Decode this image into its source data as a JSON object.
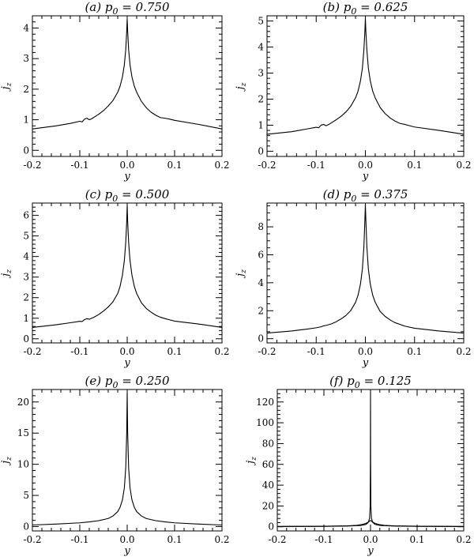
{
  "chart_data": [
    {
      "type": "line",
      "title": "(a) p0 = 0.750",
      "title_prefix": "(a) p",
      "title_sub": "0",
      "title_suffix": " = 0.750",
      "xlabel": "y",
      "ylabel": "j",
      "ylabel_sub": "z",
      "xlim": [
        -0.2,
        0.2
      ],
      "ylim": [
        -0.2,
        4.4
      ],
      "xticks": [
        -0.2,
        -0.1,
        0.0,
        0.1,
        0.2
      ],
      "xtick_labels": [
        "-0.2",
        "-0.1",
        "0.0",
        "0.1",
        "0.2"
      ],
      "yticks": [
        0,
        1,
        2,
        3,
        4
      ],
      "ytick_labels": [
        "0",
        "1",
        "2",
        "3",
        "4"
      ],
      "series": [
        {
          "x": [
            -0.2,
            -0.15,
            -0.12,
            -0.1,
            -0.095,
            -0.09,
            -0.085,
            -0.08,
            -0.075,
            -0.07,
            -0.06,
            -0.05,
            -0.04,
            -0.03,
            -0.02,
            -0.015,
            -0.01,
            -0.006,
            -0.003,
            -0.001,
            0.0,
            0.001,
            0.003,
            0.006,
            0.01,
            0.015,
            0.02,
            0.03,
            0.04,
            0.05,
            0.06,
            0.07,
            0.08,
            0.09,
            0.1,
            0.15,
            0.2
          ],
          "y": [
            0.7,
            0.8,
            0.88,
            0.95,
            0.93,
            1.02,
            1.05,
            1.0,
            1.03,
            1.08,
            1.18,
            1.3,
            1.45,
            1.63,
            1.9,
            2.1,
            2.4,
            2.8,
            3.3,
            3.9,
            4.3,
            3.9,
            3.3,
            2.8,
            2.4,
            2.1,
            1.9,
            1.6,
            1.4,
            1.25,
            1.15,
            1.07,
            1.05,
            1.02,
            0.98,
            0.85,
            0.7
          ]
        }
      ]
    },
    {
      "type": "line",
      "title": "(b) p0 = 0.625",
      "title_prefix": "(b) p",
      "title_sub": "0",
      "title_suffix": " = 0.625",
      "xlabel": "y",
      "ylabel": "j",
      "ylabel_sub": "z",
      "xlim": [
        -0.2,
        0.2
      ],
      "ylim": [
        -0.2,
        5.2
      ],
      "xticks": [
        -0.2,
        -0.1,
        0.0,
        0.1,
        0.2
      ],
      "xtick_labels": [
        "-0.2",
        "-0.1",
        "0.0",
        "0.1",
        "0.2"
      ],
      "yticks": [
        0,
        1,
        2,
        3,
        4,
        5
      ],
      "ytick_labels": [
        "0",
        "1",
        "2",
        "3",
        "4",
        "5"
      ],
      "series": [
        {
          "x": [
            -0.2,
            -0.15,
            -0.12,
            -0.1,
            -0.095,
            -0.09,
            -0.085,
            -0.08,
            -0.075,
            -0.07,
            -0.06,
            -0.05,
            -0.04,
            -0.03,
            -0.02,
            -0.015,
            -0.01,
            -0.006,
            -0.003,
            -0.001,
            0.0,
            0.001,
            0.003,
            0.006,
            0.01,
            0.015,
            0.02,
            0.03,
            0.04,
            0.05,
            0.06,
            0.07,
            0.08,
            0.09,
            0.1,
            0.15,
            0.2
          ],
          "y": [
            0.65,
            0.75,
            0.85,
            0.92,
            0.9,
            1.0,
            1.03,
            0.98,
            1.02,
            1.08,
            1.2,
            1.33,
            1.5,
            1.72,
            2.05,
            2.3,
            2.7,
            3.2,
            3.9,
            4.6,
            5.1,
            4.6,
            3.9,
            3.2,
            2.7,
            2.3,
            2.05,
            1.68,
            1.45,
            1.28,
            1.16,
            1.07,
            1.03,
            0.98,
            0.93,
            0.8,
            0.65
          ]
        }
      ]
    },
    {
      "type": "line",
      "title": "(c) p0 = 0.500",
      "title_prefix": "(c) p",
      "title_sub": "0",
      "title_suffix": " = 0.500",
      "xlabel": "y",
      "ylabel": "j",
      "ylabel_sub": "z",
      "xlim": [
        -0.2,
        0.2
      ],
      "ylim": [
        -0.2,
        6.6
      ],
      "xticks": [
        -0.2,
        -0.1,
        0.0,
        0.1,
        0.2
      ],
      "xtick_labels": [
        "-0.2",
        "-0.1",
        "0.0",
        "0.1",
        "0.2"
      ],
      "yticks": [
        0,
        1,
        2,
        3,
        4,
        5,
        6
      ],
      "ytick_labels": [
        "0",
        "1",
        "2",
        "3",
        "4",
        "5",
        "6"
      ],
      "series": [
        {
          "x": [
            -0.2,
            -0.15,
            -0.12,
            -0.1,
            -0.095,
            -0.09,
            -0.085,
            -0.08,
            -0.075,
            -0.07,
            -0.06,
            -0.05,
            -0.04,
            -0.03,
            -0.02,
            -0.015,
            -0.01,
            -0.006,
            -0.003,
            -0.001,
            0.0,
            0.001,
            0.003,
            0.006,
            0.01,
            0.015,
            0.02,
            0.03,
            0.04,
            0.05,
            0.06,
            0.07,
            0.08,
            0.09,
            0.1,
            0.15,
            0.2
          ],
          "y": [
            0.55,
            0.68,
            0.78,
            0.85,
            0.84,
            0.93,
            0.98,
            0.95,
            1.0,
            1.05,
            1.18,
            1.35,
            1.55,
            1.8,
            2.2,
            2.55,
            3.1,
            3.8,
            4.7,
            5.7,
            6.5,
            5.7,
            4.7,
            3.8,
            3.1,
            2.55,
            2.2,
            1.75,
            1.48,
            1.3,
            1.15,
            1.05,
            0.98,
            0.92,
            0.86,
            0.72,
            0.55
          ]
        }
      ]
    },
    {
      "type": "line",
      "title": "(d) p0 = 0.375",
      "title_prefix": "(d) p",
      "title_sub": "0",
      "title_suffix": " = 0.375",
      "xlabel": "y",
      "ylabel": "j",
      "ylabel_sub": "z",
      "xlim": [
        -0.2,
        0.2
      ],
      "ylim": [
        -0.3,
        9.7
      ],
      "xticks": [
        -0.2,
        -0.1,
        0.0,
        0.1,
        0.2
      ],
      "xtick_labels": [
        "-0.2",
        "-0.1",
        "0.0",
        "0.1",
        "0.2"
      ],
      "yticks": [
        0,
        2,
        4,
        6,
        8
      ],
      "ytick_labels": [
        "0",
        "2",
        "4",
        "6",
        "8"
      ],
      "series": [
        {
          "x": [
            -0.2,
            -0.15,
            -0.12,
            -0.1,
            -0.09,
            -0.085,
            -0.08,
            -0.07,
            -0.06,
            -0.05,
            -0.04,
            -0.03,
            -0.02,
            -0.015,
            -0.01,
            -0.006,
            -0.003,
            -0.001,
            0.0,
            0.001,
            0.003,
            0.006,
            0.01,
            0.015,
            0.02,
            0.03,
            0.04,
            0.05,
            0.06,
            0.08,
            0.1,
            0.15,
            0.2
          ],
          "y": [
            0.4,
            0.55,
            0.68,
            0.78,
            0.85,
            0.92,
            0.95,
            1.05,
            1.2,
            1.4,
            1.65,
            2.0,
            2.6,
            3.1,
            3.9,
            5.0,
            6.6,
            8.5,
            9.6,
            8.5,
            6.6,
            5.0,
            3.9,
            3.1,
            2.6,
            1.95,
            1.6,
            1.35,
            1.15,
            0.9,
            0.75,
            0.55,
            0.4
          ]
        }
      ]
    },
    {
      "type": "line",
      "title": "(e) p0 = 0.250",
      "title_prefix": "(e) p",
      "title_sub": "0",
      "title_suffix": " = 0.250",
      "xlabel": "y",
      "ylabel": "j",
      "ylabel_sub": "z",
      "xlim": [
        -0.2,
        0.2
      ],
      "ylim": [
        -0.7,
        22.0
      ],
      "xticks": [
        -0.2,
        -0.1,
        0.0,
        0.1,
        0.2
      ],
      "xtick_labels": [
        "-0.2",
        "-0.1",
        "0.0",
        "0.1",
        "0.2"
      ],
      "yticks": [
        0,
        5,
        10,
        15,
        20
      ],
      "ytick_labels": [
        "0",
        "5",
        "10",
        "15",
        "20"
      ],
      "series": [
        {
          "x": [
            -0.2,
            -0.15,
            -0.1,
            -0.08,
            -0.06,
            -0.04,
            -0.03,
            -0.02,
            -0.015,
            -0.01,
            -0.006,
            -0.003,
            -0.001,
            0.0,
            0.001,
            0.003,
            0.006,
            0.01,
            0.015,
            0.02,
            0.03,
            0.04,
            0.06,
            0.08,
            0.1,
            0.15,
            0.2
          ],
          "y": [
            0.25,
            0.4,
            0.6,
            0.75,
            0.95,
            1.3,
            1.7,
            2.4,
            3.1,
            4.3,
            6.2,
            9.5,
            15.0,
            21.5,
            15.0,
            9.5,
            6.2,
            4.3,
            3.1,
            2.4,
            1.7,
            1.3,
            0.95,
            0.75,
            0.6,
            0.4,
            0.25
          ]
        }
      ]
    },
    {
      "type": "line",
      "title": "(f) p0 = 0.125",
      "title_prefix": "(f) p",
      "title_sub": "0",
      "title_suffix": " = 0.125",
      "xlabel": "y",
      "ylabel": "j",
      "ylabel_sub": "z",
      "xlim": [
        -0.2,
        0.2
      ],
      "ylim": [
        -4.0,
        132.0
      ],
      "xticks": [
        -0.2,
        -0.1,
        0.0,
        0.1,
        0.2
      ],
      "xtick_labels": [
        "-0.2",
        "-0.1",
        "0.0",
        "0.1",
        "0.2"
      ],
      "yticks": [
        0,
        20,
        40,
        60,
        80,
        100,
        120
      ],
      "ytick_labels": [
        "0",
        "20",
        "40",
        "60",
        "80",
        "100",
        "120"
      ],
      "series": [
        {
          "x": [
            -0.2,
            -0.1,
            -0.05,
            -0.02,
            -0.01,
            -0.005,
            -0.002,
            -0.0008,
            -0.0003,
            0.0,
            0.0003,
            0.0008,
            0.002,
            0.005,
            0.01,
            0.02,
            0.05,
            0.1,
            0.2
          ],
          "y": [
            0.2,
            0.4,
            0.7,
            1.3,
            2.2,
            4.0,
            8.0,
            20.0,
            60.0,
            130.0,
            60.0,
            20.0,
            8.0,
            4.0,
            2.2,
            1.3,
            0.7,
            0.4,
            0.2
          ]
        },
        {
          "x": [
            -0.2,
            -0.1,
            -0.05,
            -0.03,
            -0.02,
            -0.01,
            -0.005,
            0.0,
            0.005,
            0.01,
            0.02,
            0.03,
            0.05,
            0.1,
            0.2
          ],
          "y": [
            0.3,
            0.5,
            0.9,
            1.4,
            2.0,
            3.2,
            4.5,
            6.0,
            4.5,
            3.2,
            2.0,
            1.4,
            0.9,
            0.5,
            0.3
          ]
        }
      ]
    }
  ]
}
